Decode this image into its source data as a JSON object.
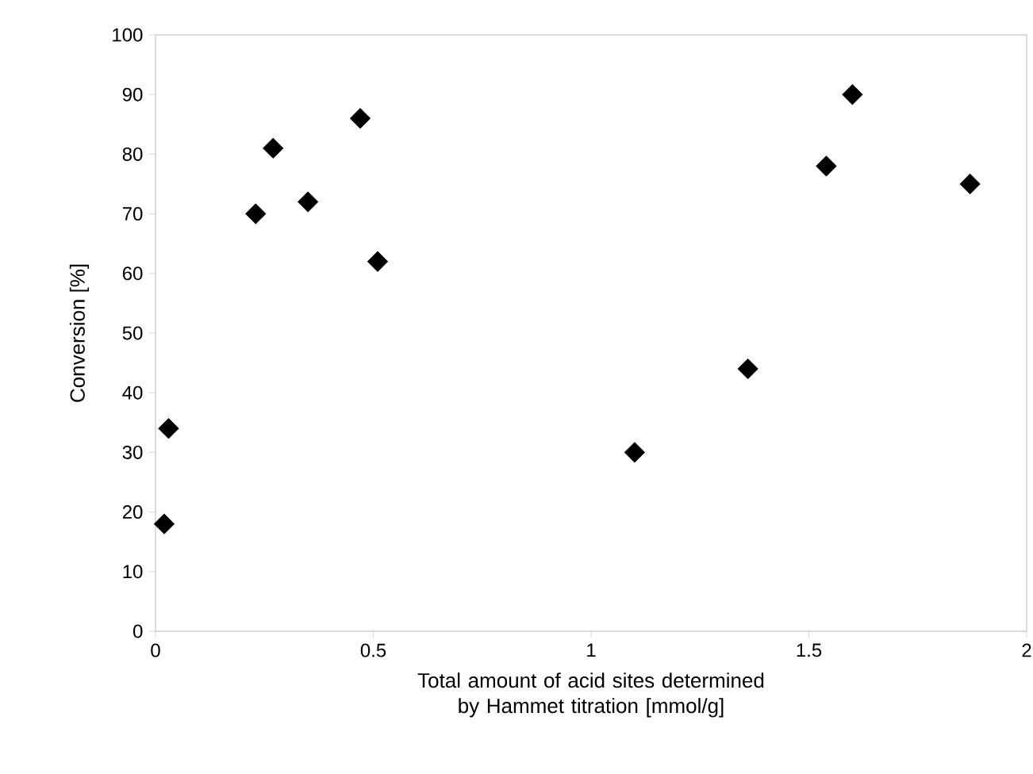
{
  "chart_data": {
    "type": "scatter",
    "xlabel": "Total amount of acid sites determined by Hammet titration [mmol/g]",
    "ylabel": "Conversion  [%]",
    "x": [
      0.02,
      0.03,
      0.23,
      0.27,
      0.35,
      0.47,
      0.51,
      1.1,
      1.36,
      1.54,
      1.6,
      1.87
    ],
    "values": [
      18,
      34,
      70,
      81,
      72,
      86,
      62,
      30,
      44,
      78,
      90,
      75
    ],
    "color": "#000000",
    "marker": "diamond",
    "xlim": [
      0,
      2
    ],
    "ylim": [
      0,
      100
    ],
    "xticks": [
      0,
      0.5,
      1,
      1.5,
      2
    ],
    "yticks": [
      0,
      10,
      20,
      30,
      40,
      50,
      60,
      70,
      80,
      90,
      100
    ]
  }
}
